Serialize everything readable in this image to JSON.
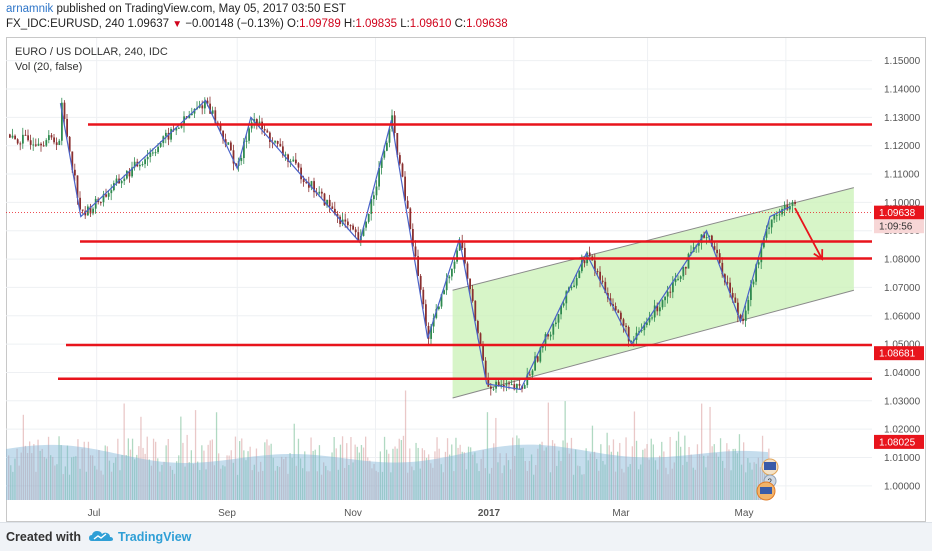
{
  "header": {
    "author": "arnamnik",
    "published_text": " published on TradingView.com, May 05, 2017 03:50 EST",
    "symbol": "FX_IDC:EURUSD, 240",
    "last": "1.09637",
    "change": "−0.00148 (−0.13%)",
    "o_label": "O:",
    "o": "1.09789",
    "h_label": "H:",
    "h": "1.09835",
    "l_label": "L:",
    "l": "1.09610",
    "c_label": "C:",
    "c": "1.09638"
  },
  "legend": {
    "title": "EURO / US DOLLAR, 240, IDC",
    "volume": "Vol (20, false)"
  },
  "footer": {
    "created_with": "Created with",
    "brand": "TradingView"
  },
  "colors": {
    "up": "#2f8a4f",
    "down": "#8a2f2f",
    "level": "#e8141c",
    "channel_fill": "#c9f2b6",
    "wave": "#4a63c9",
    "price_tag": "#e8141c"
  },
  "chart_data": {
    "type": "candlestick",
    "symbol": "EURUSD",
    "timeframe": "240",
    "x_ticks": [
      "Jul",
      "Sep",
      "Nov",
      "2017",
      "Mar",
      "May"
    ],
    "y_ticks": [
      "1.15000",
      "1.14000",
      "1.13000",
      "1.12000",
      "1.11000",
      "1.10000",
      "1.09000",
      "1.08000",
      "1.07000",
      "1.06000",
      "1.05000",
      "1.04000",
      "1.03000",
      "1.02000",
      "1.01000",
      "1.00000"
    ],
    "ylim": [
      0.995,
      1.158
    ],
    "price_tags": [
      {
        "label": "1.09638",
        "value": 1.09638
      },
      {
        "label": "1:09:56",
        "value": 1.0916
      },
      {
        "label": "1.08681",
        "value": 1.0468
      },
      {
        "label": "1.08025",
        "value": 1.0155
      }
    ],
    "horizontal_levels": [
      1.1275,
      1.0862,
      1.0802,
      1.0497,
      1.0378
    ],
    "channel": {
      "lower": [
        [
          "2016-12-05",
          1.031
        ],
        [
          "2017-05-31",
          1.069
        ]
      ],
      "upper": [
        [
          "2016-12-05",
          1.069
        ],
        [
          "2017-05-31",
          1.1052
        ]
      ]
    },
    "approx_swing_points": [
      [
        "2016-06-15",
        1.135
      ],
      [
        "2016-06-24",
        1.095
      ],
      [
        "2016-08-18",
        1.136
      ],
      [
        "2016-09-01",
        1.112
      ],
      [
        "2016-09-07",
        1.13
      ],
      [
        "2016-10-25",
        1.086
      ],
      [
        "2016-11-08",
        1.129
      ],
      [
        "2016-11-24",
        1.052
      ],
      [
        "2016-12-08",
        1.087
      ],
      [
        "2016-12-20",
        1.036
      ],
      [
        "2017-01-04",
        1.034
      ],
      [
        "2017-02-02",
        1.082
      ],
      [
        "2017-02-22",
        1.05
      ],
      [
        "2017-03-27",
        1.09
      ],
      [
        "2017-04-11",
        1.058
      ],
      [
        "2017-04-24",
        1.095
      ],
      [
        "2017-05-03",
        1.0985
      ]
    ],
    "forecast_arrow": [
      [
        "2017-05-05",
        1.098
      ],
      [
        "2017-05-17",
        1.08
      ]
    ],
    "volume_panel": true
  }
}
